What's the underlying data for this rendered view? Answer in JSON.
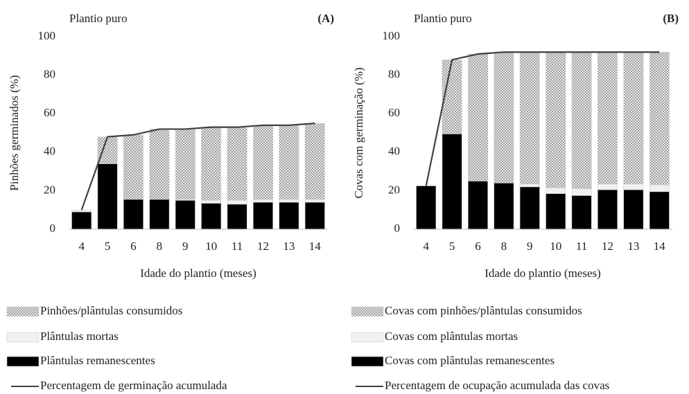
{
  "chart_data": [
    {
      "type": "bar",
      "stacked": true,
      "title": "Plantio puro",
      "panel_label": "(A)",
      "x_label": "Idade do plantio (meses)",
      "y_label": "Pinhões germinados (%)",
      "categories": [
        "4",
        "5",
        "6",
        "8",
        "9",
        "10",
        "11",
        "12",
        "13",
        "14"
      ],
      "ylim": [
        0,
        100
      ],
      "yticks": [
        0,
        20,
        40,
        60,
        80,
        100
      ],
      "grid": false,
      "series": [
        {
          "name": "Pinhões/plântulas consumidos",
          "color": "#6e6e6e",
          "pattern": "dots",
          "values": [
            0,
            14,
            33.5,
            36.5,
            36.5,
            38,
            38,
            38.5,
            38.5,
            39.5
          ]
        },
        {
          "name": "Plântulas mortas",
          "color": "#f0f0f0",
          "values": [
            1,
            0,
            0,
            0,
            0.5,
            1.5,
            2,
            1.5,
            1.5,
            1.5
          ]
        },
        {
          "name": "Plântulas remanescentes",
          "color": "#000000",
          "values": [
            9,
            34,
            15.5,
            15.5,
            15,
            13.5,
            13,
            14,
            14,
            14
          ]
        },
        {
          "name": "Percentagem de germinação acumulada",
          "type": "line",
          "color": "#404040",
          "values": [
            10,
            48,
            49,
            52,
            52,
            53,
            53,
            54,
            54,
            55
          ]
        }
      ]
    },
    {
      "type": "bar",
      "stacked": true,
      "title": "Plantio puro",
      "panel_label": "(B)",
      "x_label": "Idade do plantio (meses)",
      "y_label": "Covas com germinação (%)",
      "categories": [
        "4",
        "5",
        "6",
        "8",
        "9",
        "10",
        "11",
        "12",
        "13",
        "14"
      ],
      "ylim": [
        0,
        100
      ],
      "yticks": [
        0,
        20,
        40,
        60,
        80,
        100
      ],
      "grid": false,
      "series": [
        {
          "name": "Covas com pinhões/plântulas consumidos",
          "color": "#6e6e6e",
          "pattern": "dots",
          "values": [
            0,
            38.5,
            66,
            68,
            68.5,
            70.5,
            71,
            68.5,
            68.5,
            69
          ]
        },
        {
          "name": "Covas com plântulas mortas",
          "color": "#f0f0f0",
          "values": [
            0,
            0,
            0,
            0,
            1.5,
            3,
            3.5,
            3,
            3,
            3.5
          ]
        },
        {
          "name": "Covas com plântulas remanescentes",
          "color": "#000000",
          "values": [
            22.5,
            49.5,
            25,
            24,
            22,
            18.5,
            17.5,
            20.5,
            20.5,
            19.5
          ]
        },
        {
          "name": "Percentagem de ocupação acumulada das covas",
          "type": "line",
          "color": "#404040",
          "values": [
            22.5,
            88,
            91,
            92,
            92,
            92,
            92,
            92,
            92,
            92
          ]
        }
      ]
    }
  ]
}
